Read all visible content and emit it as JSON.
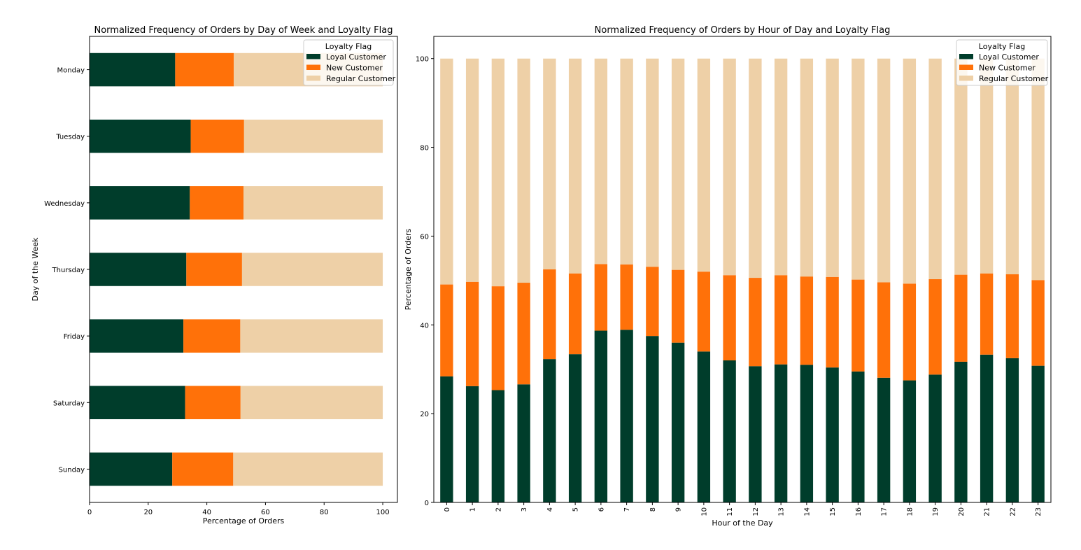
{
  "colors": {
    "loyal": "#003d2b",
    "new": "#ff7109",
    "regular": "#eed0a7"
  },
  "chart_data": [
    {
      "type": "bar",
      "orientation": "horizontal",
      "stacked": true,
      "title": "Normalized Frequency of Orders by Day of Week and Loyalty Flag",
      "xlabel": "Percentage of Orders",
      "ylabel": "Day of the Week",
      "xlim": [
        0,
        105
      ],
      "xticks": [
        "0",
        "20",
        "40",
        "60",
        "80",
        "100"
      ],
      "categories": [
        "Monday",
        "Tuesday",
        "Wednesday",
        "Thursday",
        "Friday",
        "Saturday",
        "Sunday"
      ],
      "legend": {
        "title": "Loyalty Flag",
        "placement": "top-right",
        "entries": [
          "Loyal Customer",
          "New Customer",
          "Regular Customer"
        ]
      },
      "series": [
        {
          "name": "Loyal Customer",
          "values": [
            29.2,
            34.5,
            34.2,
            33.0,
            32.0,
            32.6,
            28.2
          ]
        },
        {
          "name": "New Customer",
          "values": [
            20.0,
            18.2,
            18.3,
            19.0,
            19.4,
            18.9,
            20.8
          ]
        },
        {
          "name": "Regular Customer",
          "values": [
            50.8,
            47.3,
            47.5,
            48.0,
            48.6,
            48.5,
            51.0
          ]
        }
      ]
    },
    {
      "type": "bar",
      "orientation": "vertical",
      "stacked": true,
      "title": "Normalized Frequency of Orders by Hour of Day and Loyalty Flag",
      "xlabel": "Hour of the Day",
      "ylabel": "Percentage of Orders",
      "ylim": [
        0,
        105
      ],
      "yticks": [
        "0",
        "20",
        "40",
        "60",
        "80",
        "100"
      ],
      "categories": [
        "0",
        "1",
        "2",
        "3",
        "4",
        "5",
        "6",
        "7",
        "8",
        "9",
        "10",
        "11",
        "12",
        "13",
        "14",
        "15",
        "16",
        "17",
        "18",
        "19",
        "20",
        "21",
        "22",
        "23"
      ],
      "legend": {
        "title": "Loyalty Flag",
        "placement": "top-right",
        "entries": [
          "Loyal Customer",
          "New Customer",
          "Regular Customer"
        ]
      },
      "series": [
        {
          "name": "Loyal Customer",
          "values": [
            28.4,
            26.2,
            25.3,
            26.6,
            32.3,
            33.4,
            38.7,
            38.9,
            37.5,
            36.0,
            34.0,
            32.0,
            30.7,
            31.1,
            31.0,
            30.4,
            29.5,
            28.1,
            27.5,
            28.8,
            31.7,
            33.3,
            32.5,
            30.8
          ]
        },
        {
          "name": "New Customer",
          "values": [
            20.7,
            23.5,
            23.4,
            22.9,
            20.2,
            18.2,
            15.0,
            14.7,
            15.6,
            16.4,
            18.0,
            19.2,
            19.9,
            20.1,
            19.9,
            20.4,
            20.7,
            21.5,
            21.8,
            21.5,
            19.6,
            18.3,
            18.9,
            19.3
          ]
        },
        {
          "name": "Regular Customer",
          "values": [
            50.9,
            50.3,
            51.3,
            50.5,
            47.5,
            48.4,
            46.3,
            46.4,
            46.9,
            47.6,
            48.0,
            48.8,
            49.4,
            48.8,
            49.1,
            49.2,
            49.8,
            50.4,
            50.7,
            49.7,
            48.7,
            48.4,
            48.6,
            49.9
          ]
        }
      ]
    }
  ]
}
